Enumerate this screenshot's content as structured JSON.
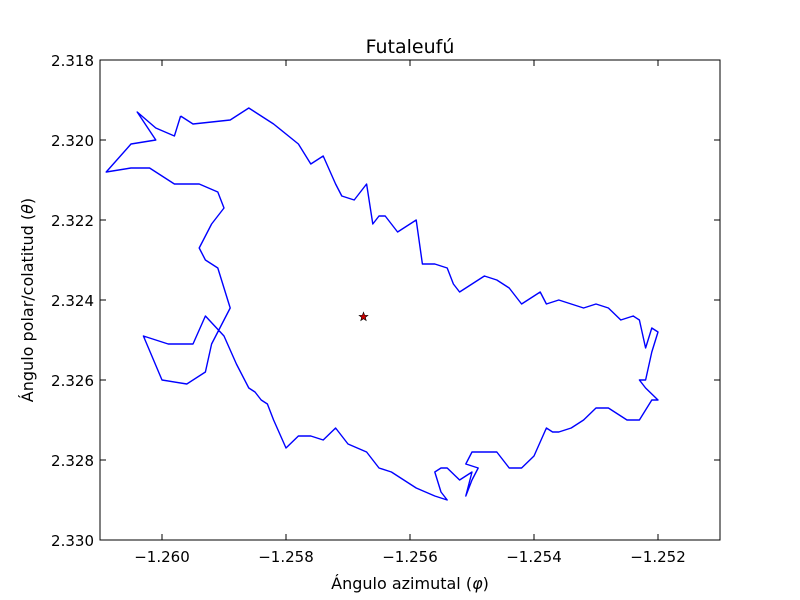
{
  "chart_data": {
    "type": "line",
    "title": "Futaleufú",
    "xlabel_text": "Ángulo azimutal (",
    "xlabel_symbol": "φ",
    "xlabel_close": ")",
    "ylabel_text": "Ángulo polar/colatitud (",
    "ylabel_symbol": "θ",
    "ylabel_close": ")",
    "xlim": [
      -1.261,
      -1.251
    ],
    "ylim": [
      2.318,
      2.33
    ],
    "y_inverted": true,
    "grid": false,
    "x_ticks": [
      -1.26,
      -1.258,
      -1.256,
      -1.254,
      -1.252
    ],
    "x_tick_labels": [
      "−1.260",
      "−1.258",
      "−1.256",
      "−1.254",
      "−1.252"
    ],
    "y_ticks": [
      2.318,
      2.32,
      2.322,
      2.324,
      2.326,
      2.328,
      2.33
    ],
    "y_tick_labels": [
      "2.318",
      "2.320",
      "2.322",
      "2.324",
      "2.326",
      "2.328",
      "2.330"
    ],
    "series": [
      {
        "kind": "boundary",
        "color": "#0000ff",
        "x": [
          -1.2597,
          -1.2595,
          -1.2589,
          -1.2586,
          -1.2582,
          -1.2578,
          -1.2576,
          -1.2574,
          -1.2572,
          -1.2571,
          -1.2569,
          -1.2567,
          -1.2566,
          -1.2565,
          -1.2564,
          -1.2563,
          -1.2562,
          -1.2561,
          -1.2559,
          -1.2558,
          -1.2556,
          -1.2554,
          -1.2553,
          -1.2552,
          -1.255,
          -1.2548,
          -1.2546,
          -1.2544,
          -1.2542,
          -1.254,
          -1.2539,
          -1.2538,
          -1.2536,
          -1.2534,
          -1.2532,
          -1.253,
          -1.2528,
          -1.2526,
          -1.2524,
          -1.2523,
          -1.2522,
          -1.2521,
          -1.252,
          -1.2521,
          -1.2522,
          -1.2523,
          -1.2522,
          -1.252,
          -1.2521,
          -1.2523,
          -1.2525,
          -1.2528,
          -1.253,
          -1.2532,
          -1.2534,
          -1.2536,
          -1.2537,
          -1.2538,
          -1.254,
          -1.2542,
          -1.2544,
          -1.2546,
          -1.2548,
          -1.255,
          -1.2551,
          -1.2549,
          -1.255,
          -1.2551,
          -1.255,
          -1.2552,
          -1.2554,
          -1.2555,
          -1.2556,
          -1.2555,
          -1.2554,
          -1.2556,
          -1.2559,
          -1.2561,
          -1.2563,
          -1.2565,
          -1.2567,
          -1.257,
          -1.2572,
          -1.2574,
          -1.2576,
          -1.2578,
          -1.258,
          -1.2582,
          -1.2583,
          -1.2584,
          -1.2585,
          -1.2586,
          -1.2588,
          -1.259,
          -1.2593,
          -1.2595,
          -1.2599,
          -1.2603,
          -1.26,
          -1.2596,
          -1.2593,
          -1.2592,
          -1.259,
          -1.2589,
          -1.2591,
          -1.2593,
          -1.2594,
          -1.2592,
          -1.259,
          -1.2591,
          -1.2594,
          -1.2598,
          -1.2602,
          -1.2605,
          -1.2609,
          -1.2605,
          -1.2601,
          -1.2604,
          -1.2601,
          -1.2598,
          -1.2597
        ],
        "y": [
          2.3194,
          2.3196,
          2.3195,
          2.3192,
          2.3196,
          2.3201,
          2.3206,
          2.3204,
          2.3211,
          2.3214,
          2.3215,
          2.3211,
          2.3221,
          2.3219,
          2.3219,
          2.3221,
          2.3223,
          2.3222,
          2.322,
          2.3231,
          2.3231,
          2.3232,
          2.3236,
          2.3238,
          2.3236,
          2.3234,
          2.3235,
          2.3237,
          2.3241,
          2.3239,
          2.3238,
          2.3241,
          2.324,
          2.3241,
          2.3242,
          2.3241,
          2.3242,
          2.3245,
          2.3244,
          2.3245,
          2.3252,
          2.3247,
          2.3248,
          2.3253,
          2.326,
          2.326,
          2.3262,
          2.3265,
          2.3265,
          2.327,
          2.327,
          2.3267,
          2.3267,
          2.327,
          2.3272,
          2.3273,
          2.3273,
          2.3272,
          2.3279,
          2.3282,
          2.3282,
          2.3278,
          2.3278,
          2.3278,
          2.3281,
          2.3282,
          2.3285,
          2.3289,
          2.3283,
          2.3285,
          2.3282,
          2.3282,
          2.3283,
          2.3288,
          2.329,
          2.3289,
          2.3287,
          2.3285,
          2.3283,
          2.3282,
          2.3278,
          2.3276,
          2.3272,
          2.3275,
          2.3274,
          2.3274,
          2.3277,
          2.327,
          2.3266,
          2.3265,
          2.3263,
          2.3262,
          2.3256,
          2.3249,
          2.3244,
          2.3251,
          2.3251,
          2.3249,
          2.326,
          2.3261,
          2.3258,
          2.3251,
          2.3245,
          2.3242,
          2.3232,
          2.323,
          2.3227,
          2.3221,
          2.3217,
          2.3213,
          2.3211,
          2.3211,
          2.3207,
          2.3207,
          2.3208,
          2.3201,
          2.32,
          2.3193,
          2.3197,
          2.3199,
          2.3194
        ]
      },
      {
        "kind": "centroid",
        "marker": "star",
        "color": "#cc0000",
        "x": [
          -1.25675
        ],
        "y": [
          2.32442
        ]
      }
    ]
  }
}
